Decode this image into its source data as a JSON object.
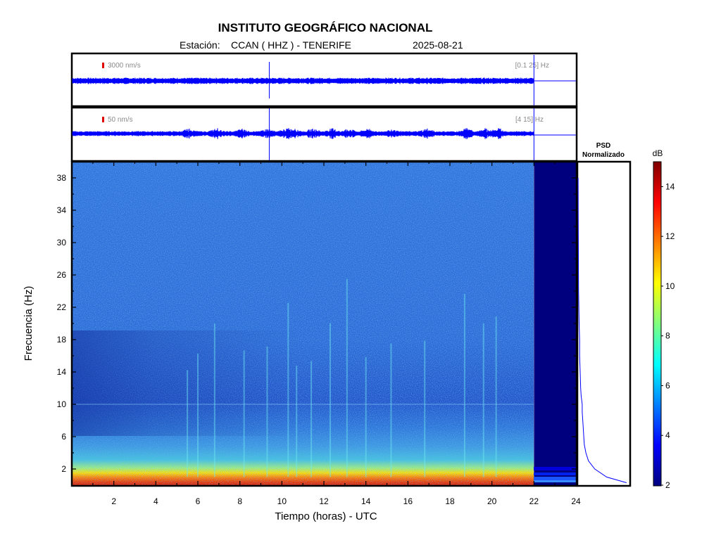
{
  "header": {
    "title": "INSTITUTO GEOGRÁFICO NACIONAL",
    "station_prefix": "Estación:",
    "station": "CCAN ( HHZ ) - TENERIFE",
    "date": "2025-08-21"
  },
  "chart_data": [
    {
      "type": "line",
      "panel": "seismogram-broadband",
      "scale_label": "3000 nm/s",
      "band_label": "[0.1 25] Hz",
      "x_range_hours": [
        0,
        24
      ],
      "data_end_hour": 22,
      "marker_hour": 9.4
    },
    {
      "type": "line",
      "panel": "seismogram-filtered",
      "scale_label": "50 nm/s",
      "band_label": "[4 15] Hz",
      "x_range_hours": [
        0,
        24
      ],
      "data_end_hour": 22,
      "marker_hour": 9.4,
      "bursts_hours": [
        5.6,
        6.9,
        8.1,
        9.3,
        10.2,
        10.6,
        11.5,
        12.4,
        13.2,
        14.1,
        15.3,
        16.9,
        18.8,
        19.7,
        20.3
      ]
    },
    {
      "type": "heatmap",
      "panel": "spectrogram",
      "xlabel": "Tiempo (horas) - UTC",
      "ylabel": "Frecuencia  (Hz)",
      "xlim": [
        0,
        24
      ],
      "ylim": [
        0,
        40
      ],
      "x_ticks": [
        2,
        4,
        6,
        8,
        10,
        12,
        14,
        16,
        18,
        20,
        22,
        24
      ],
      "y_ticks": [
        2,
        6,
        10,
        14,
        18,
        22,
        26,
        30,
        34,
        38
      ],
      "data_end_hour": 22,
      "strong_energy_band_hz": [
        0,
        2
      ],
      "persistent_line_hz": 10,
      "transient_events_hours": [
        5.5,
        6.0,
        6.8,
        8.2,
        9.3,
        10.3,
        10.7,
        11.4,
        12.3,
        13.1,
        14.0,
        15.2,
        16.8,
        18.7,
        19.6,
        20.2
      ]
    },
    {
      "type": "line",
      "panel": "psd",
      "title": "PSD\nNormalizado",
      "title_lines": [
        "PSD",
        "Normalizado"
      ],
      "freq_hz": [
        0.3,
        1,
        2,
        3,
        4,
        5,
        6,
        7,
        8,
        9,
        10,
        11,
        12,
        14,
        16,
        18,
        20,
        22,
        24,
        26,
        30,
        34,
        38
      ],
      "value_norm": [
        0.93,
        0.55,
        0.32,
        0.2,
        0.15,
        0.12,
        0.11,
        0.1,
        0.09,
        0.08,
        0.08,
        0.06,
        0.05,
        0.04,
        0.03,
        0.03,
        0.02,
        0.015,
        0.01,
        0.008,
        0.005,
        0.003,
        0.002
      ]
    },
    {
      "type": "heatmap",
      "panel": "colorbar",
      "unit_label": "dB",
      "range": [
        2,
        15
      ],
      "ticks": [
        2,
        4,
        6,
        8,
        10,
        12,
        14
      ]
    }
  ],
  "colors": {
    "trace": "#0000ff",
    "scale_bar": "#e00000",
    "colormap": [
      "#00007f",
      "#0000ff",
      "#007fff",
      "#00ffff",
      "#7fff7f",
      "#ffff00",
      "#ff7f00",
      "#ff0000",
      "#7f0000"
    ]
  }
}
